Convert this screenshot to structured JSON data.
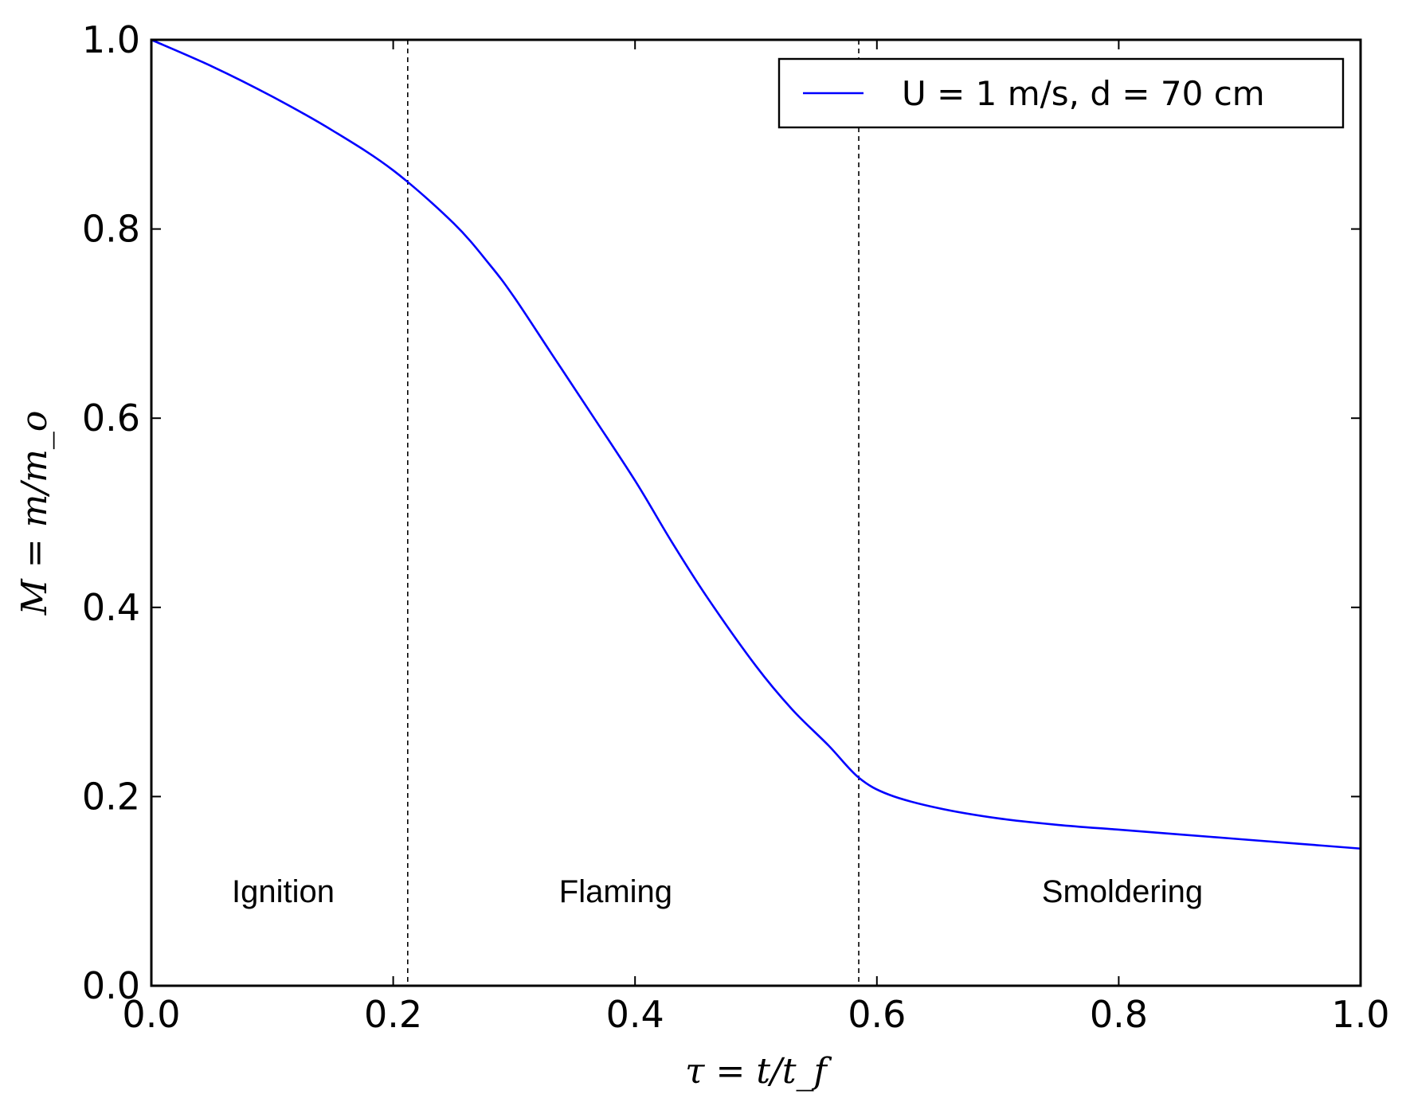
{
  "chart_data": {
    "type": "line",
    "title": "",
    "xlabel": "τ = t/t_f",
    "ylabel": "M = m/m_o",
    "xlim": [
      0.0,
      1.0
    ],
    "ylim": [
      0.0,
      1.0
    ],
    "xticks": [
      "0.0",
      "0.2",
      "0.4",
      "0.6",
      "0.8",
      "1.0"
    ],
    "yticks": [
      "0.0",
      "0.2",
      "0.4",
      "0.6",
      "0.8",
      "1.0"
    ],
    "grid": false,
    "legend_position": "top-right",
    "series": [
      {
        "name": "U = 1 m/s, d = 70 cm",
        "color": "#0000ff",
        "x": [
          0.0,
          0.05,
          0.1,
          0.15,
          0.2,
          0.25,
          0.28,
          0.3,
          0.33,
          0.36,
          0.4,
          0.43,
          0.46,
          0.5,
          0.53,
          0.56,
          0.585,
          0.61,
          0.65,
          0.7,
          0.75,
          0.8,
          0.85,
          0.9,
          0.95,
          1.0
        ],
        "y": [
          1.0,
          0.972,
          0.94,
          0.904,
          0.862,
          0.806,
          0.762,
          0.728,
          0.67,
          0.612,
          0.534,
          0.47,
          0.41,
          0.338,
          0.292,
          0.254,
          0.22,
          0.202,
          0.188,
          0.177,
          0.17,
          0.165,
          0.16,
          0.155,
          0.15,
          0.145
        ]
      }
    ],
    "vlines": [
      {
        "x": 0.212,
        "style": "dashed"
      },
      {
        "x": 0.585,
        "style": "dashed"
      }
    ],
    "annotations": [
      {
        "text": "Ignition",
        "x": 0.109,
        "y": 0.1
      },
      {
        "text": "Flaming",
        "x": 0.384,
        "y": 0.1
      },
      {
        "text": "Smoldering",
        "x": 0.803,
        "y": 0.1
      }
    ]
  }
}
